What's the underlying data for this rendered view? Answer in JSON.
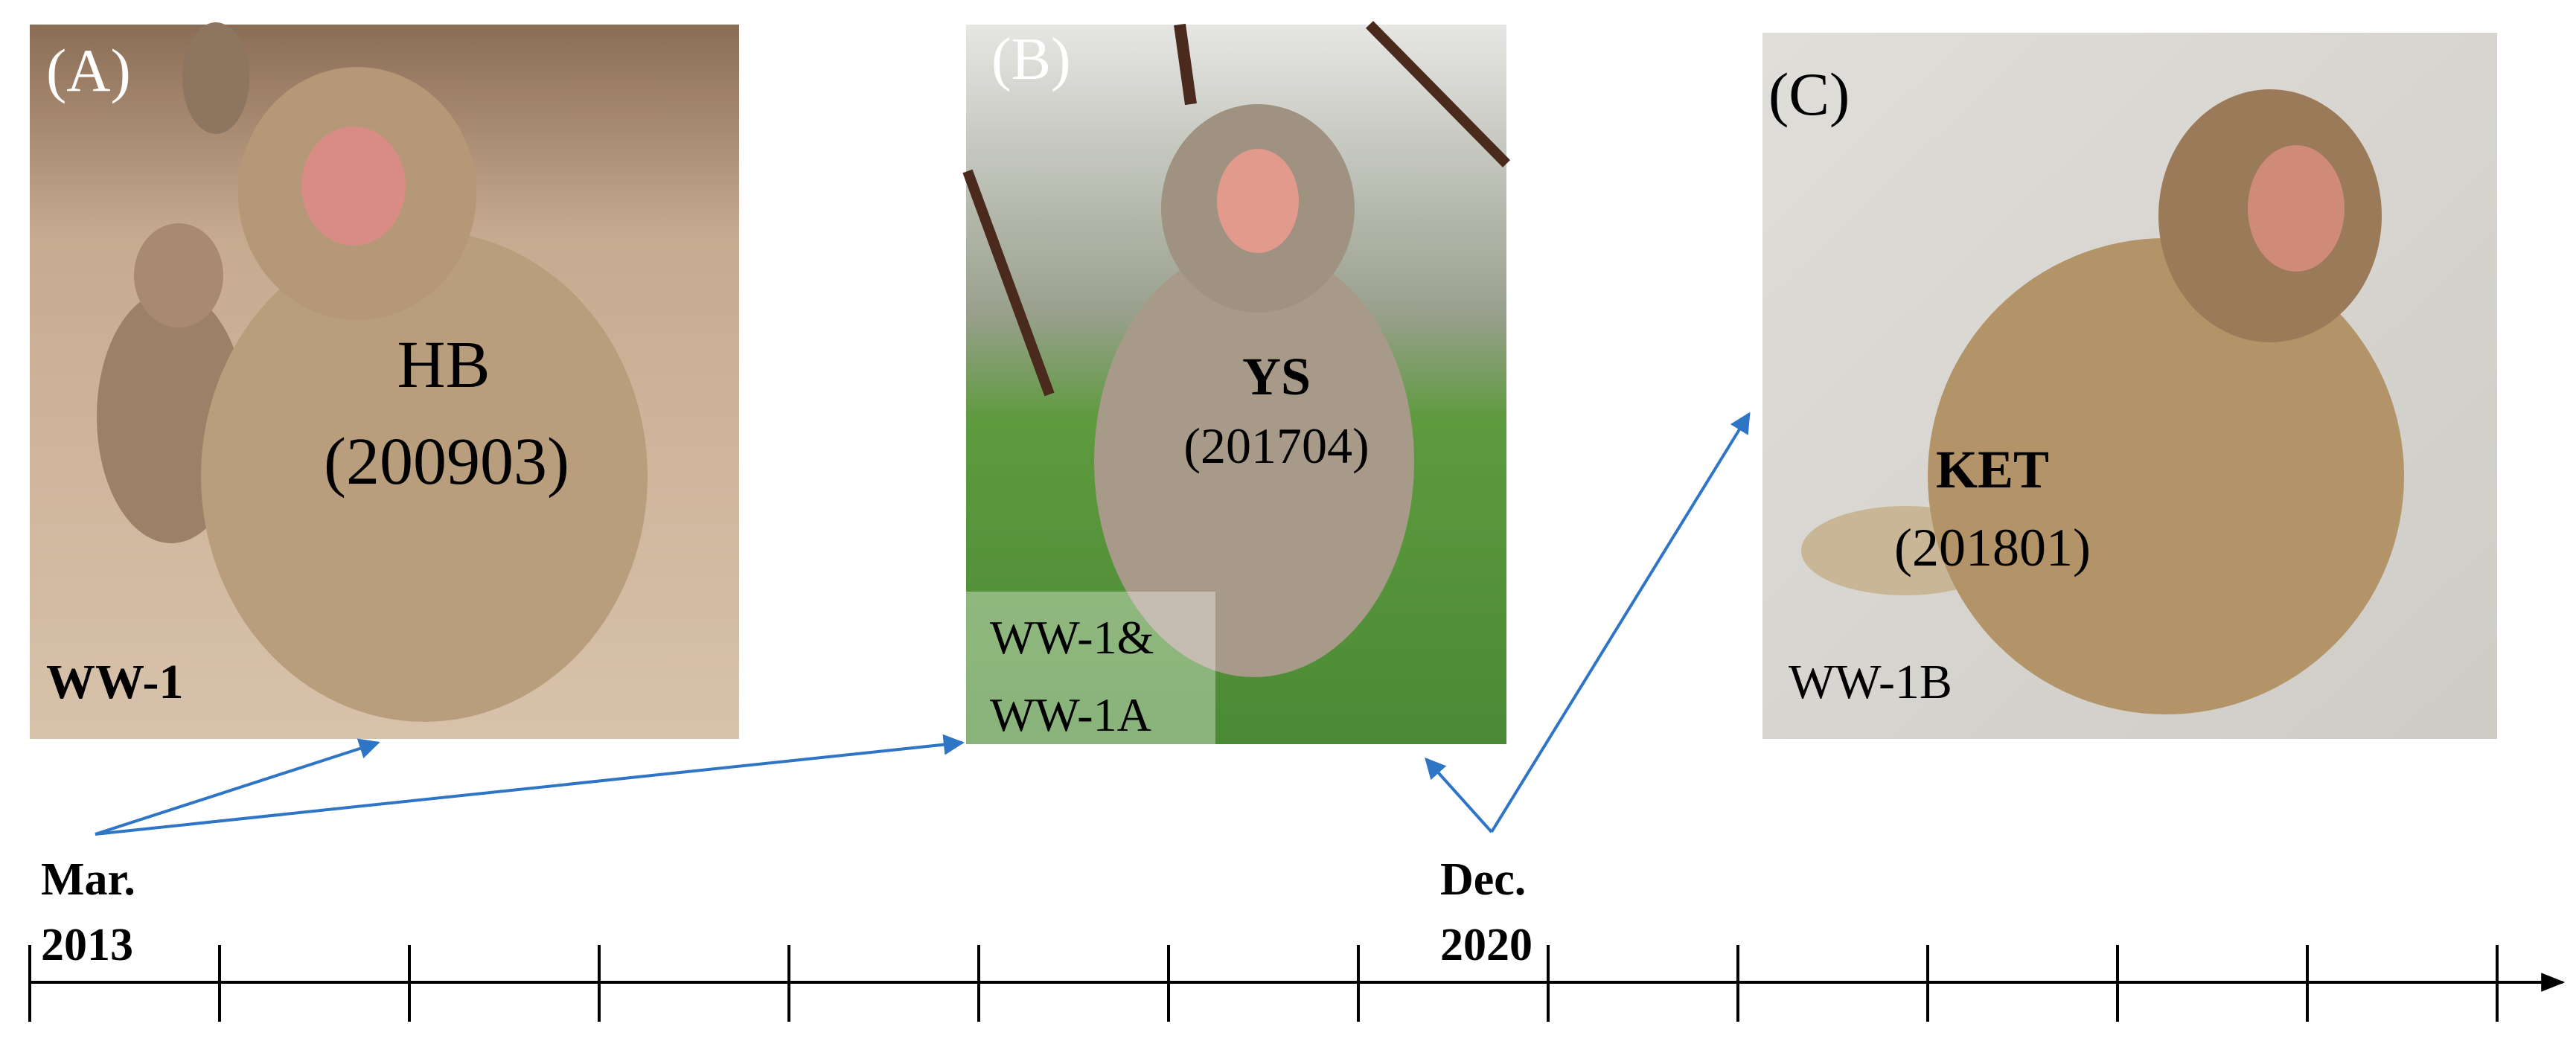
{
  "panels": [
    {
      "label": "(A)",
      "name": "HB",
      "code": "(200903)",
      "group": [
        "WW-1"
      ]
    },
    {
      "label": "(B)",
      "name": "YS",
      "code": "(201704)",
      "group": [
        "WW-1&",
        "WW-1A"
      ]
    },
    {
      "label": "(C)",
      "name": "KET",
      "code": "(201801)",
      "group": [
        "WW-1B"
      ]
    }
  ],
  "timeline": {
    "start": [
      "Mar.",
      "2013"
    ],
    "mid": [
      "Dec.",
      "2020"
    ]
  }
}
